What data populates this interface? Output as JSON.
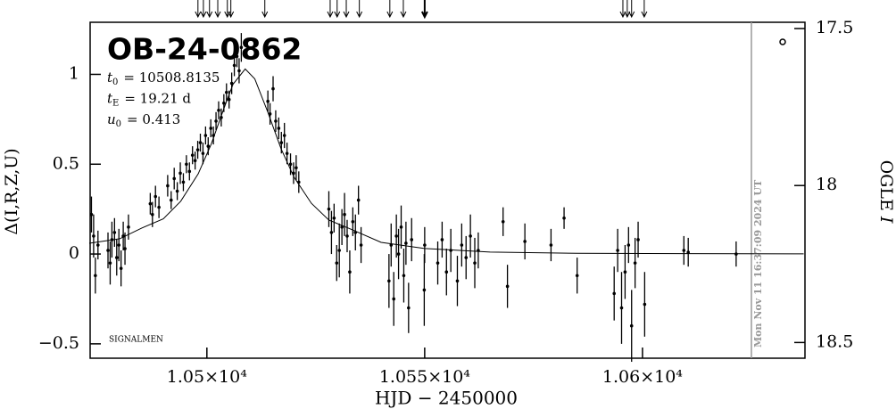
{
  "chart_data": {
    "type": "scatter",
    "title": "OB-24-0862",
    "parameters": [
      {
        "symbol": "t",
        "subscript": "0",
        "text": "= 10508.8135"
      },
      {
        "symbol": "t",
        "subscript": "E",
        "text": "= 19.21 d"
      },
      {
        "symbol": "u",
        "subscript": "0",
        "text": "= 0.413"
      }
    ],
    "annotation": "SIGNALMEN",
    "timestamp": "Mon Nov 11 16:37:09 2024 UT",
    "x_label": "HJD − 2450000",
    "y_label": "Δ(I,R,Z,U)",
    "y2_label": {
      "text": "OGLE ",
      "italic": "I"
    },
    "color": "#000000",
    "marker_color": "#999999",
    "xlim": [
      10473.2,
      10637.3
    ],
    "xticks": [
      {
        "value": 10500,
        "label": "1.05×10⁴"
      },
      {
        "value": 10550,
        "label": "1.055×10⁴"
      },
      {
        "value": 10600,
        "label": "1.06×10⁴"
      }
    ],
    "ylim": [
      -0.58,
      1.29
    ],
    "yticks": [
      {
        "value": -0.5,
        "label": "−0.5"
      },
      0,
      0.5,
      1
    ],
    "y2lim": [
      18.55,
      17.48
    ],
    "y2ticks": [
      17.5,
      18,
      18.5
    ],
    "marker_x": 10625,
    "arrows_x": [
      10497.95,
      10499.2,
      10500.6,
      10502.5,
      10504.7,
      10505.5,
      10513.3,
      10528.3,
      10529.9,
      10532.0,
      10535.0,
      10542.0,
      10545.1,
      10550.0,
      10595.5,
      10596.5,
      10597.5,
      10600.4
    ],
    "model": {
      "x": [
        10473,
        10480,
        10485,
        10490,
        10494,
        10498,
        10501,
        10504,
        10506,
        10508.8,
        10511,
        10514,
        10517,
        10520,
        10524,
        10528,
        10533,
        10540,
        10550,
        10565,
        10585,
        10610,
        10637
      ],
      "values": [
        0.06,
        0.085,
        0.144,
        0.196,
        0.294,
        0.446,
        0.612,
        0.816,
        0.945,
        1.03,
        0.975,
        0.789,
        0.588,
        0.428,
        0.282,
        0.189,
        0.139,
        0.065,
        0.031,
        0.011,
        0.004,
        0.002,
        0.001
      ]
    },
    "points": {
      "x": [
        10473.5,
        10474.0,
        10474.4,
        10475.0,
        10477.3,
        10477.8,
        10478.2,
        10478.8,
        10479.3,
        10479.8,
        10480.3,
        10480.8,
        10481.2,
        10482.0,
        10487.0,
        10487.5,
        10488.2,
        10489.0,
        10491.0,
        10491.8,
        10492.5,
        10493.2,
        10493.9,
        10494.6,
        10495.3,
        10496.0,
        10496.7,
        10497.3,
        10497.9,
        10498.5,
        10499.1,
        10499.7,
        10500.3,
        10500.9,
        10501.5,
        10502.1,
        10502.7,
        10503.3,
        10503.9,
        10504.5,
        10505.1,
        10505.7,
        10506.3,
        10506.9,
        10507.4,
        10507.9,
        10514.0,
        10514.5,
        10515.2,
        10515.8,
        10516.5,
        10517.1,
        10517.8,
        10518.4,
        10519.2,
        10519.9,
        10520.5,
        10521.1,
        10528.0,
        10528.6,
        10529.2,
        10529.8,
        10530.4,
        10531.0,
        10531.6,
        10532.2,
        10532.8,
        10533.5,
        10534.1,
        10534.8,
        10535.4,
        10541.8,
        10542.3,
        10542.9,
        10543.5,
        10544.0,
        10544.6,
        10545.2,
        10545.7,
        10546.3,
        10547.0,
        10549.9,
        10550.0,
        10553.0,
        10554.0,
        10555.0,
        10556.0,
        10557.5,
        10558.5,
        10559.5,
        10560.5,
        10561.5,
        10562.3,
        10568.0,
        10569.0,
        10573.0,
        10579.0,
        10582.0,
        10585.0,
        10593.5,
        10594.3,
        10595.2,
        10596.0,
        10596.8,
        10597.5,
        10598.3,
        10599.0,
        10600.5,
        10609.5,
        10610.5,
        10621.5
      ],
      "values": [
        0.22,
        0.1,
        -0.12,
        0.05,
        0.02,
        -0.05,
        0.08,
        0.12,
        -0.02,
        0.05,
        -0.08,
        0.1,
        0.03,
        0.15,
        0.28,
        0.22,
        0.32,
        0.26,
        0.38,
        0.3,
        0.42,
        0.35,
        0.45,
        0.4,
        0.5,
        0.46,
        0.55,
        0.52,
        0.58,
        0.62,
        0.56,
        0.66,
        0.6,
        0.7,
        0.66,
        0.74,
        0.8,
        0.76,
        0.84,
        0.9,
        0.86,
        0.95,
        1.05,
        1.1,
        1.02,
        1.15,
        0.85,
        0.78,
        0.92,
        0.74,
        0.7,
        0.62,
        0.66,
        0.56,
        0.5,
        0.45,
        0.48,
        0.4,
        0.25,
        0.12,
        0.2,
        -0.05,
        0.02,
        0.15,
        0.22,
        0.1,
        -0.1,
        0.18,
        0.12,
        0.3,
        0.05,
        -0.15,
        0.05,
        -0.25,
        0.1,
        0.0,
        0.15,
        -0.12,
        0.06,
        -0.3,
        0.08,
        -0.2,
        0.05,
        -0.05,
        0.08,
        -0.1,
        0.02,
        -0.15,
        0.05,
        -0.02,
        0.1,
        -0.05,
        0.02,
        0.18,
        -0.18,
        0.07,
        0.05,
        0.2,
        -0.12,
        -0.22,
        0.02,
        -0.3,
        -0.1,
        0.05,
        -0.4,
        -0.05,
        0.08,
        -0.28,
        0.02,
        0.01,
        0.0
      ],
      "errors": [
        0.1,
        0.12,
        0.1,
        0.08,
        0.1,
        0.12,
        0.1,
        0.08,
        0.1,
        0.09,
        0.1,
        0.08,
        0.09,
        0.07,
        0.06,
        0.07,
        0.06,
        0.06,
        0.06,
        0.05,
        0.06,
        0.05,
        0.06,
        0.05,
        0.05,
        0.05,
        0.05,
        0.05,
        0.05,
        0.05,
        0.06,
        0.05,
        0.05,
        0.05,
        0.05,
        0.05,
        0.05,
        0.05,
        0.05,
        0.05,
        0.05,
        0.06,
        0.06,
        0.06,
        0.07,
        0.08,
        0.06,
        0.06,
        0.07,
        0.06,
        0.06,
        0.06,
        0.07,
        0.06,
        0.06,
        0.06,
        0.07,
        0.06,
        0.1,
        0.12,
        0.08,
        0.1,
        0.15,
        0.1,
        0.12,
        0.09,
        0.12,
        0.08,
        0.1,
        0.08,
        0.1,
        0.15,
        0.12,
        0.15,
        0.12,
        0.14,
        0.12,
        0.15,
        0.12,
        0.14,
        0.12,
        0.2,
        0.1,
        0.12,
        0.1,
        0.13,
        0.12,
        0.14,
        0.12,
        0.12,
        0.12,
        0.14,
        0.1,
        0.08,
        0.12,
        0.1,
        0.09,
        0.06,
        0.1,
        0.15,
        0.12,
        0.2,
        0.15,
        0.1,
        0.2,
        0.14,
        0.1,
        0.18,
        0.08,
        0.08,
        0.07
      ]
    }
  }
}
